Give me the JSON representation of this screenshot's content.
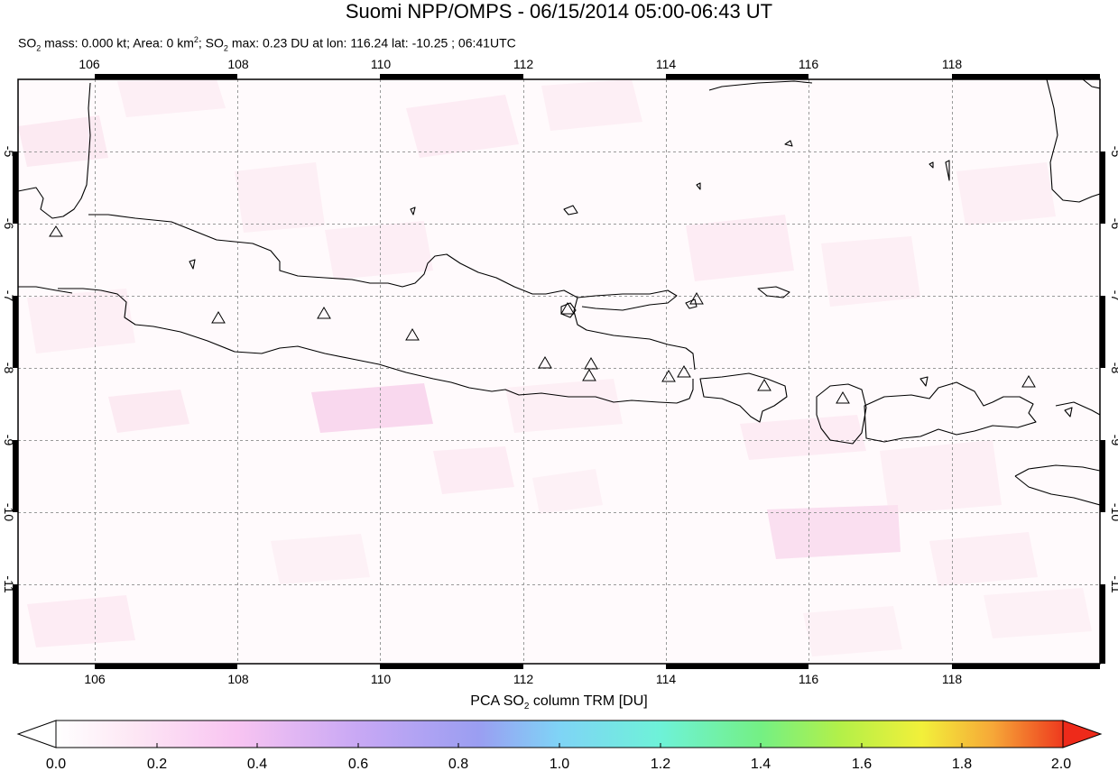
{
  "title": "Suomi NPP/OMPS - 06/15/2014 05:00-06:43 UT",
  "subtitle": {
    "p1": "SO",
    "s1": "2",
    "p2": " mass: 0.000 kt; Area: 0 km",
    "s2": "2",
    "p3": "; SO",
    "s3": "2",
    "p4": " max: 0.23 DU at lon: 116.24 lat: -10.25 ; 06:41UTC"
  },
  "map": {
    "lon_ticks": [
      "106",
      "108",
      "110",
      "112",
      "114",
      "116",
      "118"
    ],
    "lat_ticks": [
      "-5",
      "-6",
      "-7",
      "-8",
      "-9",
      "-10",
      "-11"
    ],
    "volcano_count": 14
  },
  "colorbar": {
    "title_a": "PCA SO",
    "title_sub": "2",
    "title_b": " column TRM [DU]",
    "ticks": [
      "0.0",
      "0.2",
      "0.4",
      "0.6",
      "0.8",
      "1.0",
      "1.2",
      "1.4",
      "1.6",
      "1.8",
      "2.0"
    ],
    "colors": [
      "#ffffff",
      "#fbd6ee",
      "#f4b4f6",
      "#c9a4f3",
      "#9a9cf2",
      "#7fc4f6",
      "#6ff2ee",
      "#6ef2a4",
      "#7af066",
      "#c8f045",
      "#f6f23a",
      "#f7b23a",
      "#f36a2a",
      "#ee2a1a"
    ]
  }
}
